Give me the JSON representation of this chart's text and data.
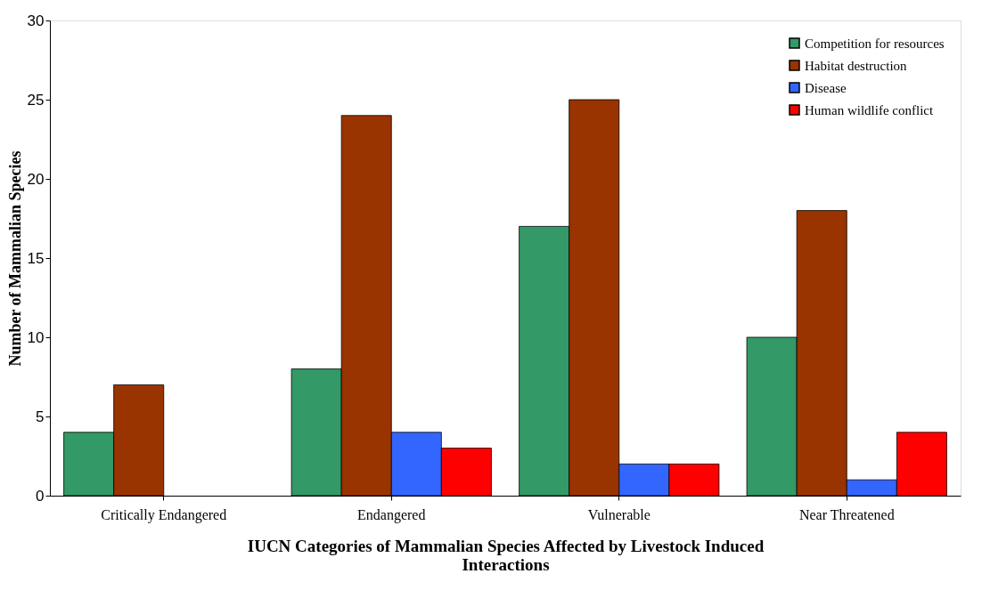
{
  "chart_data": {
    "type": "bar",
    "xlabel": "IUCN Categories of Mammalian  Species Affected by Livestock Induced Interactions",
    "ylabel": "Number of Mammalian Species",
    "categories": [
      "Critically Endangered",
      "Endangered",
      "Vulnerable",
      "Near Threatened"
    ],
    "series": [
      {
        "name": "Competition for resources",
        "color": "#339966",
        "values": [
          4,
          8,
          17,
          10
        ]
      },
      {
        "name": "Habitat destruction",
        "color": "#993300",
        "values": [
          7,
          24,
          25,
          18
        ]
      },
      {
        "name": "Disease",
        "color": "#3366ff",
        "values": [
          0,
          4,
          2,
          1
        ]
      },
      {
        "name": "Human wildlife conflict",
        "color": "#ff0000",
        "values": [
          0,
          3,
          2,
          4
        ]
      }
    ],
    "ylim": [
      0,
      30
    ],
    "yticks": [
      0,
      5,
      10,
      15,
      20,
      25,
      30
    ],
    "grid": false,
    "legend": "top right"
  }
}
